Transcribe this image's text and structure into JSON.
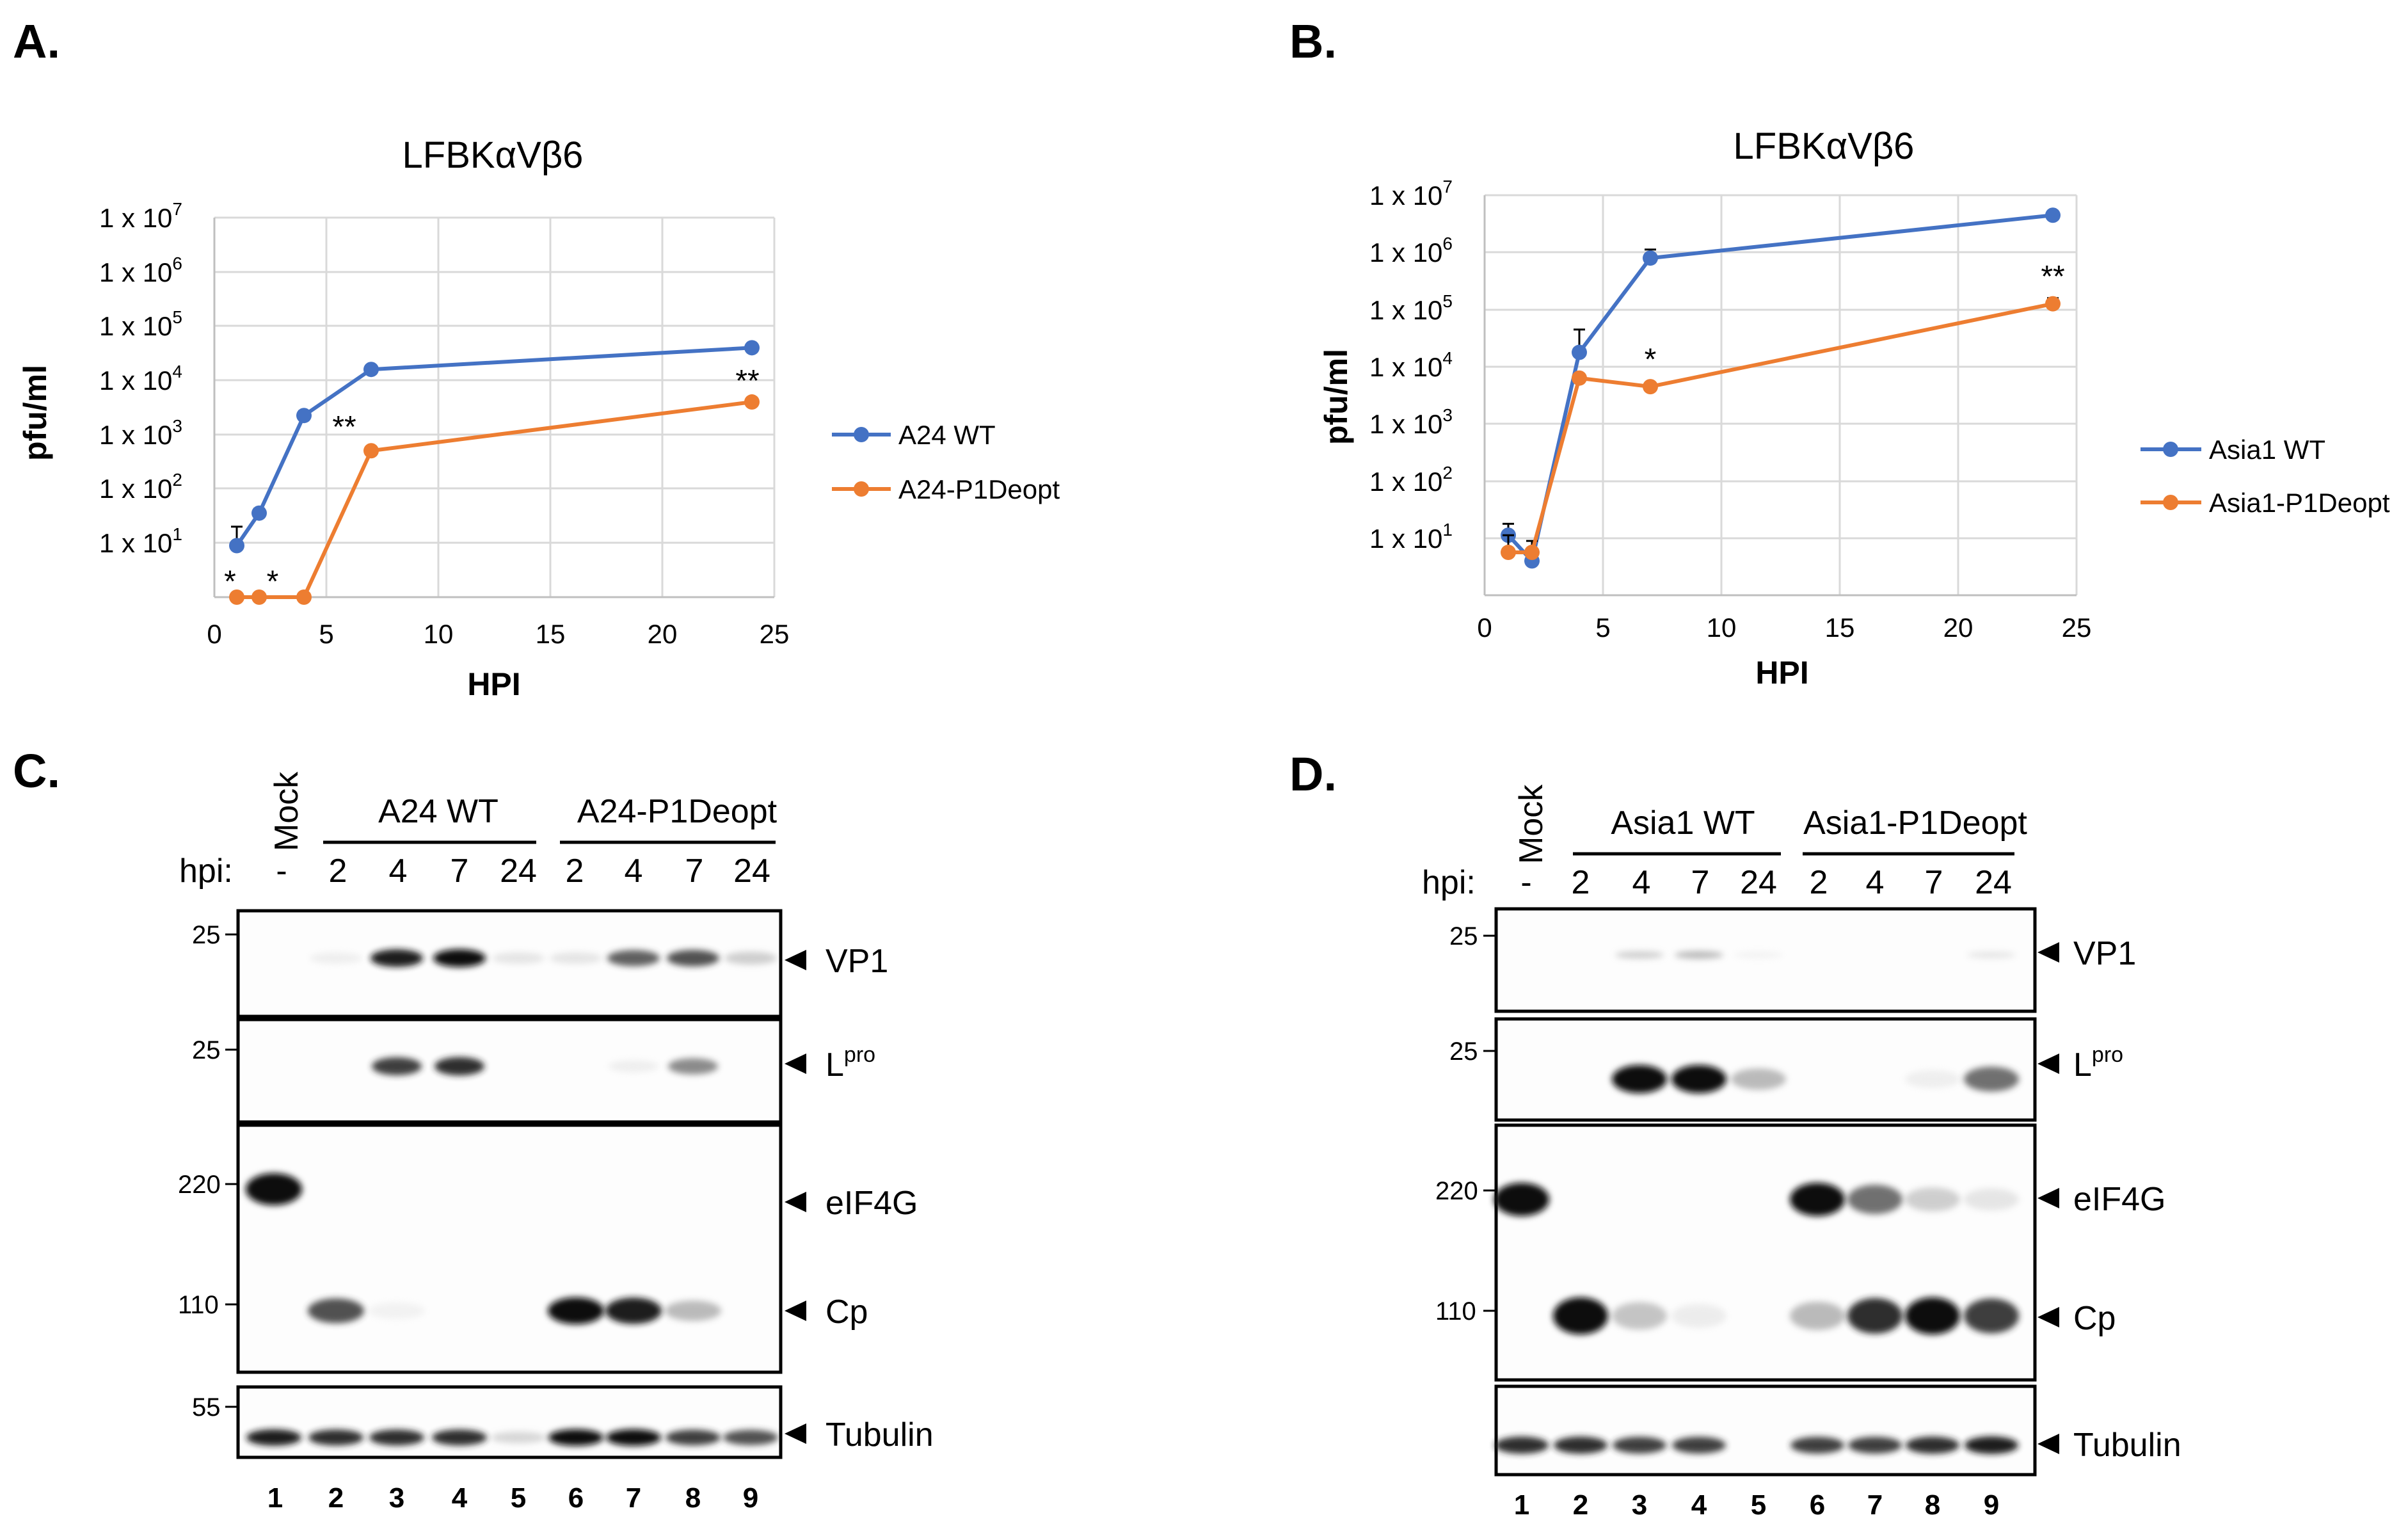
{
  "panels": {
    "a": {
      "letter": "A.",
      "chart_data": {
        "type": "line",
        "title": "LFBKαVβ6",
        "xlabel": "HPI",
        "ylabel": "pfu/ml",
        "xlim": [
          0,
          25
        ],
        "xticks": [
          0,
          5,
          10,
          15,
          20,
          25
        ],
        "ylim": [
          0,
          7
        ],
        "ytick_labels": [
          "1 x 10^1",
          "1 x 10^2",
          "1 x 10^3",
          "1 x 10^4",
          "1 x 10^5",
          "1 x 10^6",
          "1 x 10^7"
        ],
        "legend_position": "right",
        "series": [
          {
            "name": "A24 WT",
            "color": "#4472C4",
            "x": [
              1,
              2,
              4,
              7,
              24
            ],
            "y": [
              0.95,
              1.55,
              3.35,
              4.2,
              4.6
            ],
            "err": [
              0.35,
              0.08,
              0.08,
              0.05,
              0.05
            ]
          },
          {
            "name": "A24-P1Deopt",
            "color": "#ED7D31",
            "x": [
              1,
              2,
              4,
              7,
              24
            ],
            "y": [
              0,
              0,
              0,
              2.7,
              3.6
            ],
            "err": [
              0,
              0,
              0,
              0.05,
              0.05
            ]
          }
        ],
        "annotations": [
          {
            "text": "*",
            "x": 0.7,
            "y": 0.1
          },
          {
            "text": "*",
            "x": 2.6,
            "y": 0.1
          },
          {
            "text": "**",
            "x": 5.8,
            "y": 2.95
          },
          {
            "text": "**",
            "x": 23.8,
            "y": 3.8
          }
        ]
      }
    },
    "b": {
      "letter": "B.",
      "chart_data": {
        "type": "line",
        "title": "LFBKαVβ6",
        "xlabel": "HPI",
        "ylabel": "pfu/ml",
        "xlim": [
          0,
          25
        ],
        "xticks": [
          0,
          5,
          10,
          15,
          20,
          25
        ],
        "ylim": [
          0,
          7
        ],
        "ytick_labels": [
          "1 x 10^1",
          "1 x 10^2",
          "1 x 10^3",
          "1 x 10^4",
          "1 x 10^5",
          "1 x 10^6",
          "1 x 10^7"
        ],
        "legend_position": "right",
        "series": [
          {
            "name": "Asia1 WT",
            "color": "#4472C4",
            "x": [
              1,
              2,
              4,
              7,
              24
            ],
            "y": [
              1.05,
              0.6,
              4.25,
              5.9,
              6.65
            ],
            "err": [
              0.2,
              0.15,
              0.4,
              0.15,
              0.05
            ]
          },
          {
            "name": "Asia1-P1Deopt",
            "color": "#ED7D31",
            "x": [
              1,
              2,
              4,
              7,
              24
            ],
            "y": [
              0.75,
              0.75,
              3.8,
              3.65,
              5.1
            ],
            "err": [
              0.3,
              0.2,
              0.05,
              0.05,
              0.1
            ]
          }
        ],
        "annotations": [
          {
            "text": "*",
            "x": 7,
            "y": 3.95
          },
          {
            "text": "**",
            "x": 24,
            "y": 5.4
          }
        ]
      }
    },
    "c": {
      "letter": "C.",
      "mock_label": "Mock",
      "dash": "-",
      "group1": "A24 WT",
      "group2": "A24-P1Deopt",
      "hpi_label": "hpi:",
      "times": [
        "2",
        "4",
        "7",
        "24",
        "2",
        "4",
        "7",
        "24"
      ],
      "lanes": [
        "1",
        "2",
        "3",
        "4",
        "5",
        "6",
        "7",
        "8",
        "9"
      ],
      "mw": [
        "25",
        "25",
        "220",
        "110",
        "55"
      ],
      "labels": {
        "vp1": "VP1",
        "lpro_main": "L",
        "lpro_sup": "pro",
        "eif4g": "eIF4G",
        "cp": "Cp",
        "tubulin": "Tubulin"
      },
      "intensity": {
        "vp1": [
          0,
          0.08,
          0.95,
          1,
          0.15,
          0.15,
          0.75,
          0.8,
          0.3
        ],
        "lpro": [
          0,
          0,
          0.85,
          0.9,
          0,
          0,
          0.08,
          0.6,
          0
        ],
        "eif4g": [
          1,
          0,
          0,
          0,
          0,
          0,
          0,
          0,
          0
        ],
        "cp": [
          0,
          0.8,
          0.05,
          0,
          0,
          1,
          0.95,
          0.4,
          0
        ],
        "tubulin": [
          0.95,
          0.9,
          0.9,
          0.9,
          0.25,
          1,
          1,
          0.85,
          0.8
        ]
      }
    },
    "d": {
      "letter": "D.",
      "mock_label": "Mock",
      "dash": "-",
      "group1": "Asia1 WT",
      "group2": "Asia1-P1Deopt",
      "hpi_label": "hpi:",
      "times": [
        "2",
        "4",
        "7",
        "24",
        "2",
        "4",
        "7",
        "24"
      ],
      "lanes": [
        "1",
        "2",
        "3",
        "4",
        "5",
        "6",
        "7",
        "8",
        "9"
      ],
      "mw": [
        "25",
        "25",
        "220",
        "110"
      ],
      "labels": {
        "vp1": "VP1",
        "lpro_main": "L",
        "lpro_sup": "pro",
        "eif4g": "eIF4G",
        "cp": "Cp",
        "tubulin": "Tubulin"
      },
      "intensity": {
        "vp1": [
          0,
          0,
          0.3,
          0.4,
          0.05,
          0,
          0,
          0,
          0.15
        ],
        "lpro": [
          0,
          0,
          1,
          1,
          0.4,
          0,
          0,
          0.08,
          0.7
        ],
        "eif4g": [
          1,
          0,
          0,
          0,
          0,
          1,
          0.7,
          0.3,
          0.15
        ],
        "cp": [
          0,
          1,
          0.35,
          0.1,
          0,
          0.4,
          0.9,
          1,
          0.85
        ],
        "tubulin": [
          0.9,
          0.9,
          0.85,
          0.85,
          0,
          0.85,
          0.85,
          0.9,
          0.95
        ]
      }
    }
  }
}
